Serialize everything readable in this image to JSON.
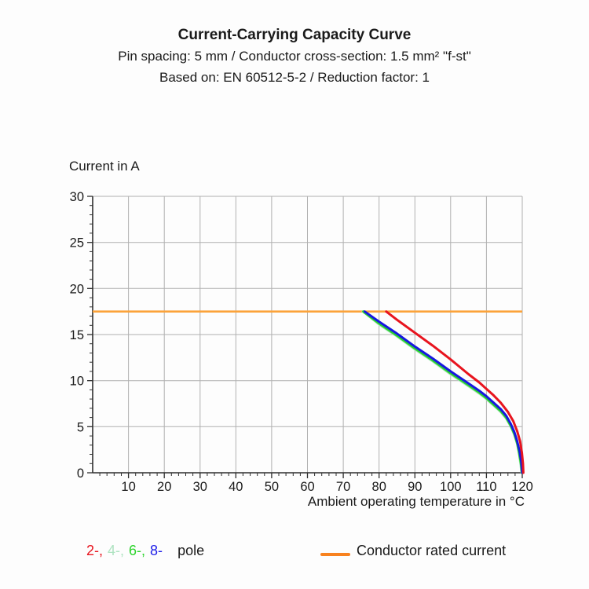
{
  "header": {
    "title": "Current-Carrying Capacity Curve",
    "subtitle_spec": "Pin spacing: 5 mm / Conductor cross-section: 1.5 mm² \"f-st\"",
    "subtitle_standard": "Based on: EN 60512-5-2 / Reduction factor: 1"
  },
  "chart_data": {
    "type": "line",
    "ylabel": "Current in A",
    "xlabel": "Ambient operating temperature in °C",
    "xlim": [
      0,
      120
    ],
    "ylim": [
      0,
      30
    ],
    "x_ticks": [
      10,
      20,
      30,
      40,
      50,
      60,
      70,
      80,
      90,
      100,
      110,
      120
    ],
    "y_ticks": [
      0,
      5,
      10,
      15,
      20,
      25,
      30
    ],
    "x_minor_step": 2,
    "y_minor_step": 1,
    "grid": true,
    "colors": {
      "grid": "#b0b0b0",
      "axis": "#2e2e2e",
      "text": "#1a1a1a"
    },
    "reference_line": {
      "name": "conductor-rated-current",
      "value": 17.5,
      "color": "#fca33a"
    },
    "series": [
      {
        "name": "4-pole",
        "color": "#aee3c1",
        "points": [
          [
            75.5,
            17.5
          ],
          [
            80,
            16.1
          ],
          [
            85,
            14.8
          ],
          [
            90,
            13.4
          ],
          [
            95,
            12.1
          ],
          [
            100,
            10.7
          ],
          [
            105,
            9.4
          ],
          [
            108,
            8.6
          ],
          [
            110,
            8.0
          ],
          [
            112,
            7.3
          ],
          [
            114,
            6.6
          ],
          [
            115.5,
            5.9
          ],
          [
            116.8,
            5.0
          ],
          [
            117.8,
            4.1
          ],
          [
            118.6,
            3.1
          ],
          [
            119.1,
            2.1
          ],
          [
            119.5,
            1.0
          ],
          [
            119.8,
            0
          ]
        ]
      },
      {
        "name": "6-pole",
        "color": "#2bd42b",
        "points": [
          [
            75.6,
            17.5
          ],
          [
            80,
            16.2
          ],
          [
            85,
            14.9
          ],
          [
            90,
            13.5
          ],
          [
            95,
            12.2
          ],
          [
            100,
            10.8
          ],
          [
            105,
            9.5
          ],
          [
            108,
            8.7
          ],
          [
            110,
            8.1
          ],
          [
            112,
            7.4
          ],
          [
            114,
            6.7
          ],
          [
            115.5,
            6.0
          ],
          [
            116.8,
            5.1
          ],
          [
            117.8,
            4.2
          ],
          [
            118.6,
            3.2
          ],
          [
            119.1,
            2.2
          ],
          [
            119.6,
            1.1
          ],
          [
            119.9,
            0
          ]
        ]
      },
      {
        "name": "8-pole",
        "color": "#1717e0",
        "points": [
          [
            76,
            17.5
          ],
          [
            80,
            16.4
          ],
          [
            85,
            15.1
          ],
          [
            90,
            13.7
          ],
          [
            95,
            12.4
          ],
          [
            100,
            11.0
          ],
          [
            105,
            9.7
          ],
          [
            108,
            8.9
          ],
          [
            110,
            8.3
          ],
          [
            112,
            7.6
          ],
          [
            114,
            6.9
          ],
          [
            115.5,
            6.2
          ],
          [
            116.8,
            5.3
          ],
          [
            117.8,
            4.4
          ],
          [
            118.6,
            3.4
          ],
          [
            119.2,
            2.4
          ],
          [
            119.7,
            1.3
          ],
          [
            120,
            0
          ]
        ]
      },
      {
        "name": "2-pole",
        "color": "#e8141e",
        "points": [
          [
            82,
            17.5
          ],
          [
            85,
            16.6
          ],
          [
            90,
            15.2
          ],
          [
            95,
            13.8
          ],
          [
            100,
            12.3
          ],
          [
            105,
            10.7
          ],
          [
            108,
            9.8
          ],
          [
            110,
            9.1
          ],
          [
            112,
            8.4
          ],
          [
            114,
            7.6
          ],
          [
            116,
            6.6
          ],
          [
            117.5,
            5.6
          ],
          [
            118.6,
            4.5
          ],
          [
            119.4,
            3.4
          ],
          [
            119.9,
            2.2
          ],
          [
            120.2,
            1.0
          ],
          [
            120.3,
            0
          ]
        ]
      }
    ]
  },
  "legend": {
    "comma": ",",
    "pole_items": [
      {
        "label": "2-",
        "color": "#e8141e"
      },
      {
        "label": "4-",
        "color": "#aee3c1"
      },
      {
        "label": "6-",
        "color": "#2bd42b"
      },
      {
        "label": "8-",
        "color": "#1f1fe8"
      }
    ],
    "pole_word": "pole",
    "rated_label": "Conductor rated current",
    "rated_swatch_color": "#f8821f"
  }
}
